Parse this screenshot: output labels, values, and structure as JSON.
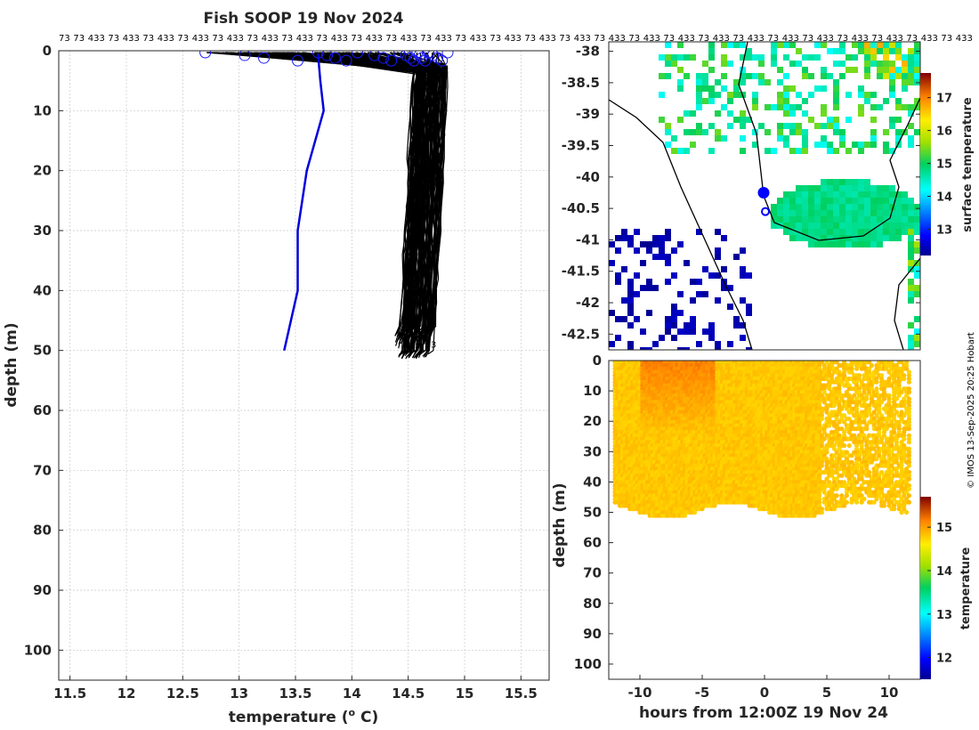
{
  "chart_data": [
    {
      "id": "profile",
      "type": "line",
      "title": "Fish SOOP 19 Nov 2024",
      "xlabel": "temperature (° C)",
      "xlabel_main": "temperature (",
      "xlabel_sup": "o",
      "xlabel_end": " C)",
      "ylabel": "depth (m)",
      "xlim": [
        11.4,
        15.75
      ],
      "ylim": [
        0,
        105
      ],
      "xticks": [
        "11.5",
        "12",
        "12.5",
        "13",
        "13.5",
        "14",
        "14.5",
        "15",
        "15.5"
      ],
      "yticks": [
        "0",
        "10",
        "20",
        "30",
        "40",
        "50",
        "60",
        "70",
        "80",
        "90",
        "100"
      ],
      "top_ids": [
        "73",
        "73",
        "433",
        "73",
        "433",
        "73",
        "433",
        "73",
        "433",
        "73",
        "433",
        "73",
        "433",
        "73",
        "433",
        "73",
        "433",
        "73",
        "433",
        "73",
        "433",
        "73",
        "433",
        "73",
        "433",
        "73",
        "433",
        "73",
        "433",
        "73",
        "433",
        "73",
        "433",
        "73",
        "433",
        "73",
        "433",
        "73",
        "433",
        "73",
        "433",
        "73",
        "433",
        "73",
        "433",
        "73",
        "433",
        "73",
        "433",
        "73",
        "433",
        "73",
        "433",
        "73",
        "433",
        "73",
        "433",
        "73"
      ],
      "series": [
        {
          "name": "blue reference profile",
          "color": "#0000dd",
          "points": [
            [
              13.7,
              0.5
            ],
            [
              13.72,
              5
            ],
            [
              13.75,
              10
            ],
            [
              13.6,
              20
            ],
            [
              13.52,
              30
            ],
            [
              13.52,
              40
            ],
            [
              13.4,
              50
            ]
          ]
        }
      ],
      "black_profile_envelope": {
        "description": "dense set of black profiles",
        "surface_temp_range": [
          12.7,
          14.85
        ],
        "mixed_layer_temp_range": [
          14.55,
          14.85
        ],
        "max_depth_range": [
          47,
          51.5
        ]
      },
      "surface_markers_temp": [
        12.7,
        13.05,
        13.22,
        13.52,
        13.7,
        13.78,
        13.85,
        13.95,
        14.05,
        14.2,
        14.28,
        14.35,
        14.42,
        14.48,
        14.52,
        14.55,
        14.58,
        14.6,
        14.62,
        14.65,
        14.68,
        14.72,
        14.76,
        14.8,
        14.85
      ]
    },
    {
      "id": "map",
      "type": "heatmap",
      "yticks": [
        "-38",
        "-38.5",
        "-39",
        "-39.5",
        "-40",
        "-40.5",
        "-41",
        "-41.5",
        "-42",
        "-42.5"
      ],
      "ylim": [
        -42.75,
        -37.85
      ],
      "colorbar_label": "surface temperature",
      "colorbar_ticks": [
        "13",
        "14",
        "15",
        "16",
        "17"
      ],
      "colorbar_range": [
        12.2,
        17.75
      ],
      "markers": [
        {
          "label": "filled",
          "lat": -40.25
        },
        {
          "label": "open",
          "lat": -40.55
        }
      ]
    },
    {
      "id": "section",
      "type": "heatmap",
      "xlabel": "hours from 12:00Z 19 Nov 24",
      "ylabel": "depth (m)",
      "xlim": [
        -12.5,
        12.5
      ],
      "ylim": [
        0,
        105
      ],
      "xticks": [
        "-10",
        "-5",
        "0",
        "5",
        "10"
      ],
      "yticks": [
        "0",
        "10",
        "20",
        "30",
        "40",
        "50",
        "60",
        "70",
        "80",
        "90",
        "100"
      ],
      "colorbar_label": "temperature",
      "colorbar_ticks": [
        "12",
        "13",
        "14",
        "15"
      ],
      "colorbar_range": [
        11.5,
        15.7
      ],
      "mean_temp": 14.8,
      "bottom_depth_range": [
        47,
        52
      ]
    }
  ],
  "credit": "© IMOS 13-Sep-2025 20:25 Hobart"
}
